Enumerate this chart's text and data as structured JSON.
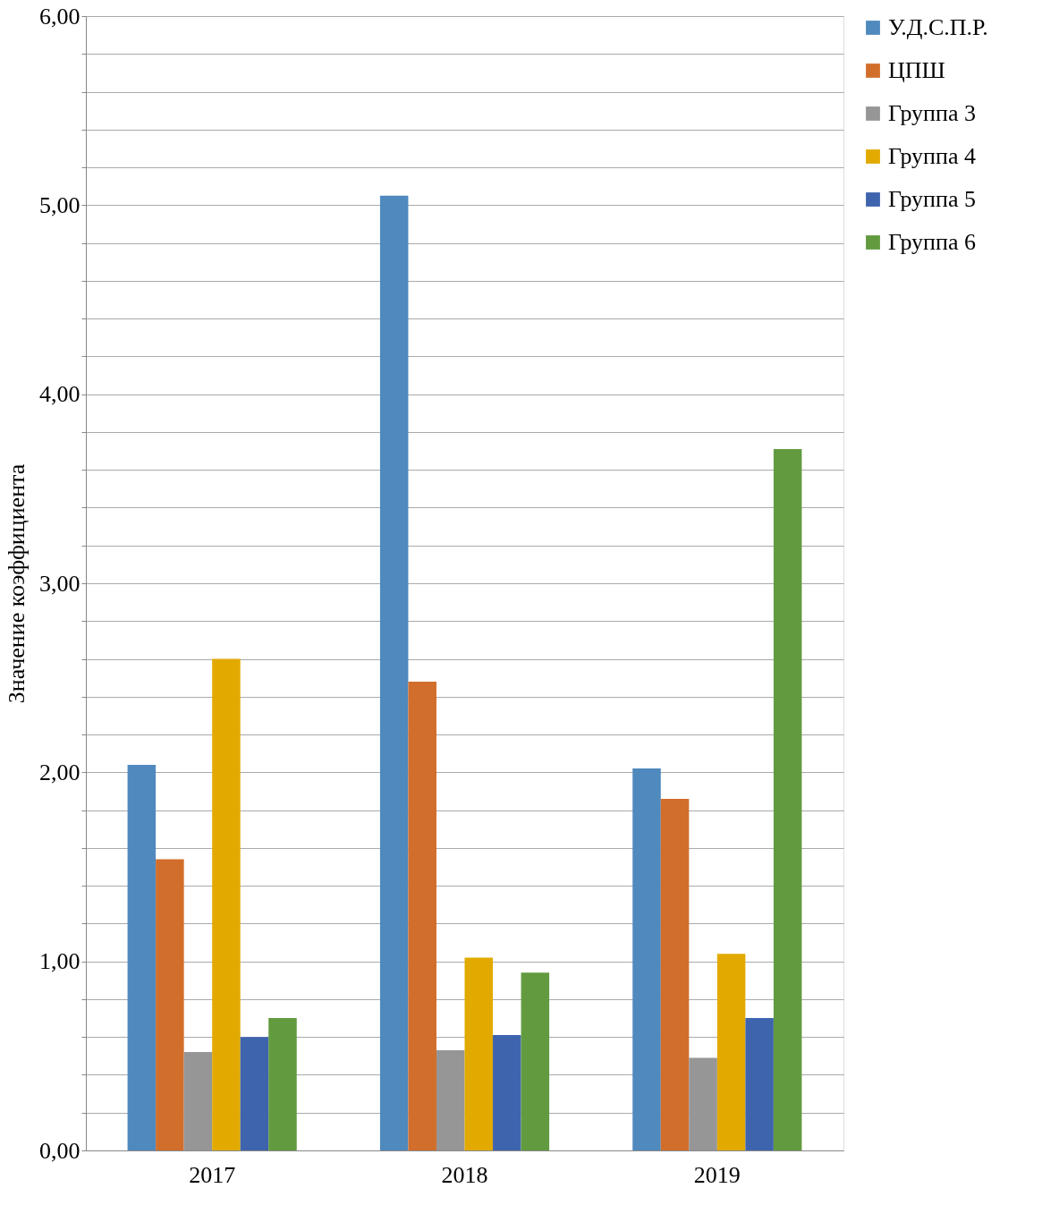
{
  "chart_data": {
    "type": "bar",
    "ylabel": "Значение коэффициента",
    "categories": [
      "2017",
      "2018",
      "2019"
    ],
    "series": [
      {
        "name": "У.Д.С.П.Р.",
        "color": "#4f89bd",
        "values": [
          2.04,
          5.05,
          2.02
        ]
      },
      {
        "name": "ЦПШ",
        "color": "#d26e2b",
        "values": [
          1.54,
          2.48,
          1.86
        ]
      },
      {
        "name": "Группа 3",
        "color": "#969696",
        "values": [
          0.52,
          0.53,
          0.49
        ]
      },
      {
        "name": "Группа 4",
        "color": "#e2aa00",
        "values": [
          2.6,
          1.02,
          1.04
        ]
      },
      {
        "name": "Группа 5",
        "color": "#3f64ae",
        "values": [
          0.6,
          0.61,
          0.7
        ]
      },
      {
        "name": "Группа 6",
        "color": "#629b3f",
        "values": [
          0.7,
          0.94,
          3.71
        ]
      }
    ],
    "ylim": [
      0,
      6
    ],
    "yticks": [
      {
        "value": 0,
        "label": "0,00"
      },
      {
        "value": 0.2,
        "label": null
      },
      {
        "value": 0.4,
        "label": null
      },
      {
        "value": 0.6,
        "label": null
      },
      {
        "value": 0.8,
        "label": null
      },
      {
        "value": 1,
        "label": "1,00"
      },
      {
        "value": 1.2,
        "label": null
      },
      {
        "value": 1.4,
        "label": null
      },
      {
        "value": 1.6,
        "label": null
      },
      {
        "value": 1.8,
        "label": null
      },
      {
        "value": 2,
        "label": "2,00"
      },
      {
        "value": 2.2,
        "label": null
      },
      {
        "value": 2.4,
        "label": null
      },
      {
        "value": 2.6,
        "label": null
      },
      {
        "value": 2.8,
        "label": null
      },
      {
        "value": 3,
        "label": "3,00"
      },
      {
        "value": 3.2,
        "label": null
      },
      {
        "value": 3.4,
        "label": null
      },
      {
        "value": 3.6,
        "label": null
      },
      {
        "value": 3.8,
        "label": null
      },
      {
        "value": 4,
        "label": "4,00"
      },
      {
        "value": 4.2,
        "label": null
      },
      {
        "value": 4.4,
        "label": null
      },
      {
        "value": 4.6,
        "label": null
      },
      {
        "value": 4.8,
        "label": null
      },
      {
        "value": 5,
        "label": "5,00"
      },
      {
        "value": 5.2,
        "label": null
      },
      {
        "value": 5.4,
        "label": null
      },
      {
        "value": 5.6,
        "label": null
      },
      {
        "value": 5.8,
        "label": null
      },
      {
        "value": 6,
        "label": "6,00"
      }
    ],
    "grid": "y",
    "legend": "right"
  }
}
